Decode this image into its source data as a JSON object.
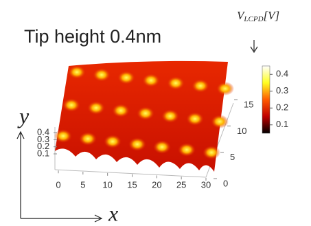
{
  "chart_data": {
    "type": "surface",
    "title": "Tip height 0.4nm",
    "colorbar_label": {
      "symbol": "V",
      "subscript": "LCPD",
      "unit": "[V]"
    },
    "xlabel": "x",
    "ylabel": "y",
    "xlim": [
      0,
      30
    ],
    "xticks": [
      0,
      5,
      10,
      15,
      20,
      25,
      30
    ],
    "ylim": [
      0,
      15
    ],
    "yticks": [
      0,
      5,
      10,
      15
    ],
    "zlim": [
      0.1,
      0.4
    ],
    "zticks": [
      0.1,
      0.2,
      0.3,
      0.4
    ],
    "clim": [
      0.05,
      0.45
    ],
    "cticks": [
      0.1,
      0.2,
      0.3,
      0.4
    ],
    "colormap": [
      "#000000",
      "#c00000",
      "#ff5a00",
      "#ffff20",
      "#ffffff"
    ]
  }
}
